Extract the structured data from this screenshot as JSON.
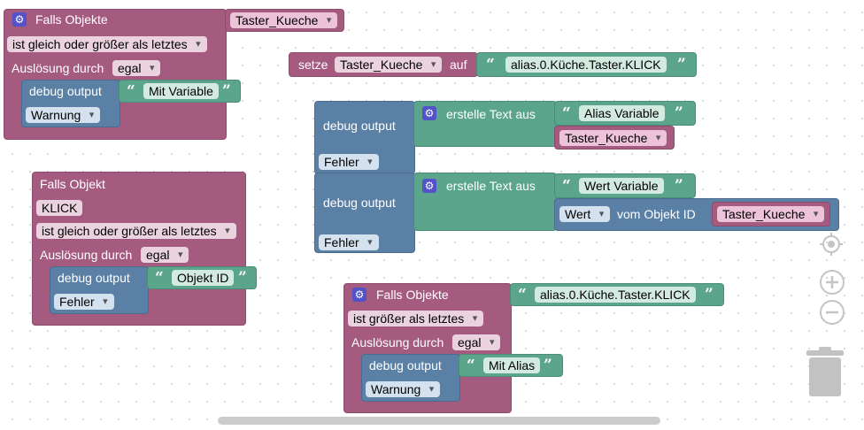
{
  "common": {
    "falls_objekte": "Falls Objekte",
    "falls_objekt": "Falls Objekt",
    "ge_last": "ist gleich oder größer als letztes",
    "gt_last": "ist größer als letztes",
    "ausloesung": "Auslösung durch",
    "egal": "egal",
    "debug_output": "debug output",
    "warnung": "Warnung",
    "fehler": "Fehler",
    "quote_open": "“",
    "quote_close": "”"
  },
  "block1": {
    "object": "Taster_Kueche",
    "message": "Mit Variable"
  },
  "block2": {
    "object": "KLICK",
    "message": "Objekt ID"
  },
  "setze": {
    "label": "setze",
    "variable": "Taster_Kueche",
    "auf": "auf",
    "value": "alias.0.Küche.Taster.KLICK"
  },
  "debug_group": {
    "erstelle1": "erstelle Text aus",
    "text1": "Alias Variable",
    "var1": "Taster_Kueche",
    "erstelle2": "erstelle Text aus",
    "text2": "Wert Variable",
    "wert": "Wert",
    "vom_objekt": "vom Objekt ID",
    "var2": "Taster_Kueche"
  },
  "block3": {
    "object": "alias.0.Küche.Taster.KLICK",
    "message": "Mit Alias"
  },
  "controls": {
    "center_icon": "crosshair-icon",
    "zoom_in_icon": "zoom-in-icon",
    "zoom_out_icon": "zoom-out-icon",
    "trash_icon": "trash-icon"
  }
}
